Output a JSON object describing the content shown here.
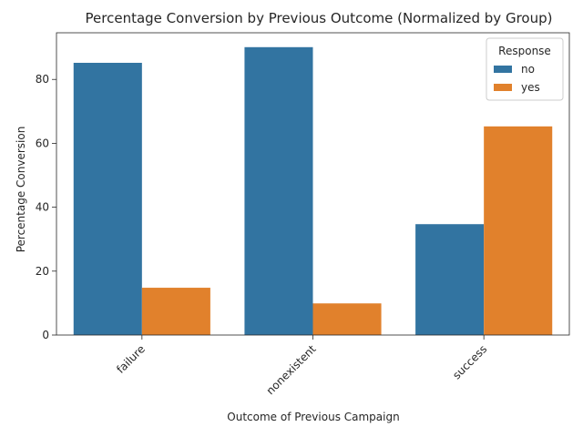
{
  "chart_data": {
    "type": "bar",
    "title": "Percentage Conversion by Previous Outcome (Normalized by Group)",
    "xlabel": "Outcome of Previous Campaign",
    "ylabel": "Percentage Conversion",
    "categories": [
      "failure",
      "nonexistent",
      "success"
    ],
    "series": [
      {
        "name": "no",
        "values": [
          85.2,
          90.1,
          34.7
        ],
        "color": "#3274a1"
      },
      {
        "name": "yes",
        "values": [
          14.8,
          9.9,
          65.3
        ],
        "color": "#e1812c"
      }
    ],
    "ylim": [
      0,
      94.6
    ],
    "yticks": [
      0,
      20,
      40,
      60,
      80
    ],
    "legend": {
      "title": "Response",
      "placement": "top-right"
    },
    "grid": false
  }
}
